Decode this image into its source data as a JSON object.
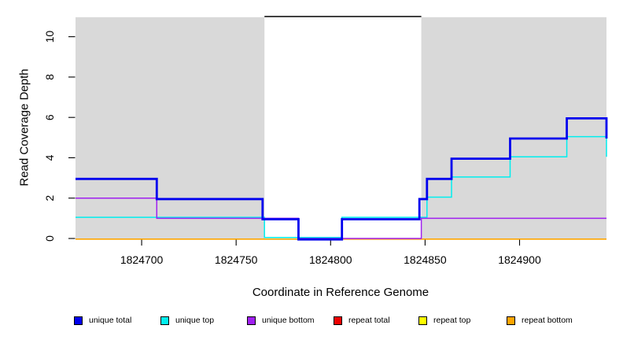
{
  "chart_data": {
    "type": "line",
    "style": "step",
    "title": "",
    "xlabel": "Coordinate in Reference Genome",
    "ylabel": "Read Coverage Depth",
    "xlim": [
      1824665,
      1824946
    ],
    "ylim": [
      0,
      11
    ],
    "x_end": 1824946,
    "x_ticks": [
      1824700,
      1824750,
      1824800,
      1824850,
      1824900
    ],
    "y_ticks": [
      0,
      2,
      4,
      6,
      8,
      10
    ],
    "grid": false,
    "legend_position": "bottom",
    "background_shading": {
      "color": "#D9D9D9",
      "regions": [
        {
          "x_start": 1824665,
          "x_end": 1824765
        },
        {
          "x_start": 1824848,
          "x_end": 1824946
        }
      ]
    },
    "repeat_region_marker": {
      "x_start": 1824765,
      "x_end": 1824848,
      "y": 11,
      "color": "#000000"
    },
    "series": [
      {
        "name": "repeat total",
        "color": "#EE0000",
        "steps": [
          [
            1824665,
            0
          ]
        ]
      },
      {
        "name": "repeat top",
        "color": "#FFFF00",
        "steps": [
          [
            1824665,
            0
          ]
        ]
      },
      {
        "name": "repeat bottom",
        "color": "#FFA500",
        "steps": [
          [
            1824665,
            0
          ]
        ]
      },
      {
        "name": "unique top",
        "color": "#00EEEE",
        "steps": [
          [
            1824665,
            1
          ],
          [
            1824765,
            0
          ],
          [
            1824806,
            1
          ],
          [
            1824851,
            2
          ],
          [
            1824864,
            3
          ],
          [
            1824895,
            4
          ],
          [
            1824925,
            5
          ],
          [
            1824946,
            4
          ]
        ]
      },
      {
        "name": "unique bottom",
        "color": "#A020F0",
        "steps": [
          [
            1824665,
            2
          ],
          [
            1824708,
            1
          ],
          [
            1824783,
            0
          ],
          [
            1824848,
            1
          ]
        ]
      },
      {
        "name": "unique total",
        "color": "#0000EE",
        "steps": [
          [
            1824665,
            3
          ],
          [
            1824708,
            2
          ],
          [
            1824764,
            1
          ],
          [
            1824783,
            0
          ],
          [
            1824806,
            1
          ],
          [
            1824847,
            2
          ],
          [
            1824851,
            3
          ],
          [
            1824864,
            4
          ],
          [
            1824895,
            5
          ],
          [
            1824925,
            6
          ],
          [
            1824946,
            5
          ]
        ]
      }
    ]
  },
  "legend": {
    "items": [
      {
        "label": "unique total",
        "color": "#0000EE"
      },
      {
        "label": "unique top",
        "color": "#00EEEE"
      },
      {
        "label": "unique bottom",
        "color": "#A020F0"
      },
      {
        "label": "repeat total",
        "color": "#EE0000"
      },
      {
        "label": "repeat top",
        "color": "#FFFF00"
      },
      {
        "label": "repeat bottom",
        "color": "#FFA500"
      }
    ]
  }
}
